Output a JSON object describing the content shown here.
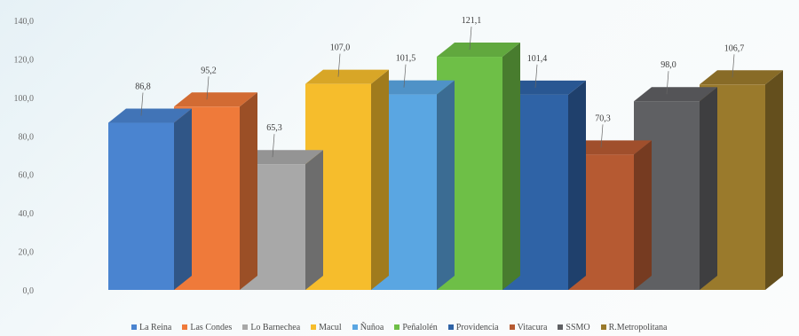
{
  "chart_data": {
    "type": "bar",
    "title": "",
    "xlabel": "",
    "ylabel": "",
    "ylim": [
      0,
      140
    ],
    "yticks": [
      "0,0",
      "20,0",
      "40,0",
      "60,0",
      "80,0",
      "100,0",
      "120,0",
      "140,0"
    ],
    "legend_position": "bottom",
    "grid": false,
    "categories": [
      "La Reina",
      "Las Condes",
      "Lo Barnechea",
      "Macul",
      "Ñuñoa",
      "Peñalolén",
      "Providencia",
      "Vitacura",
      "SSMO",
      "R.Metropolitana"
    ],
    "values": [
      86.8,
      95.2,
      65.3,
      107.0,
      101.5,
      121.1,
      101.4,
      70.3,
      98.0,
      106.7
    ],
    "labels": [
      "86,8",
      "95,2",
      "65,3",
      "107,0",
      "101,5",
      "121,1",
      "101,4",
      "70,3",
      "98,0",
      "106,7"
    ],
    "colors": [
      "#4a84d0",
      "#ef7a3a",
      "#a8a8a8",
      "#f6bd2c",
      "#5aa6e2",
      "#6ebf47",
      "#2f63a6",
      "#b65a32",
      "#5f6063",
      "#9a7a2c"
    ]
  }
}
